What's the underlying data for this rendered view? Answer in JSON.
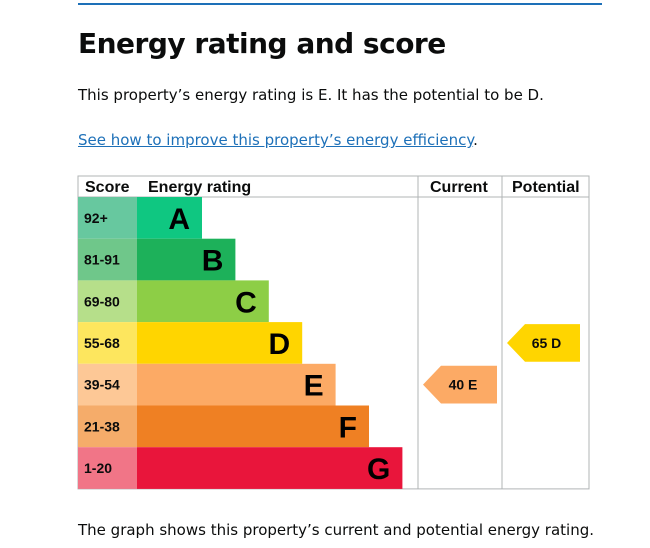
{
  "heading": "Energy rating and score",
  "summary": "This property’s energy rating is E. It has the potential to be D.",
  "improve_link": "See how to improve this property’s energy efficiency",
  "improve_link_suffix": ".",
  "caption": "The graph shows this property’s current and potential energy rating.",
  "chart_data": {
    "type": "table",
    "title": "Energy rating and score",
    "columns": [
      "Score",
      "Energy rating",
      "Current",
      "Potential"
    ],
    "bands": [
      {
        "score": "92+",
        "letter": "A",
        "color": "#0fc781",
        "score_bg": "#67c89f"
      },
      {
        "score": "81-91",
        "letter": "B",
        "color": "#1db15a",
        "score_bg": "#6fc78a"
      },
      {
        "score": "69-80",
        "letter": "C",
        "color": "#8dce46",
        "score_bg": "#b6df8a"
      },
      {
        "score": "55-68",
        "letter": "D",
        "color": "#ffd500",
        "score_bg": "#fde65e"
      },
      {
        "score": "39-54",
        "letter": "E",
        "color": "#fcaa65",
        "score_bg": "#fdc896"
      },
      {
        "score": "21-38",
        "letter": "F",
        "color": "#ef8023",
        "score_bg": "#f5ac6a"
      },
      {
        "score": "1-20",
        "letter": "G",
        "color": "#e9153b",
        "score_bg": "#f17587"
      }
    ],
    "current": {
      "value": 40,
      "letter": "E",
      "label": "40 E",
      "color": "#fcaa65"
    },
    "potential": {
      "value": 65,
      "letter": "D",
      "label": "65 D",
      "color": "#ffd500"
    }
  }
}
